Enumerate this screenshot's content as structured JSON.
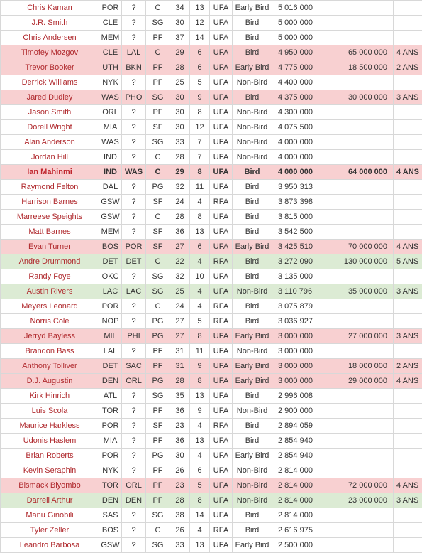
{
  "rows": [
    {
      "name": "Chris Kaman",
      "team": "POR",
      "new_team": "?",
      "pos": "C",
      "age": "34",
      "exp": "13",
      "status": "UFA",
      "rights": "Early Bird",
      "salary": "5 016 000",
      "new_salary": "",
      "years": "",
      "hl": ""
    },
    {
      "name": "J.R. Smith",
      "team": "CLE",
      "new_team": "?",
      "pos": "SG",
      "age": "30",
      "exp": "12",
      "status": "UFA",
      "rights": "Bird",
      "salary": "5 000 000",
      "new_salary": "",
      "years": "",
      "hl": ""
    },
    {
      "name": "Chris Andersen",
      "team": "MEM",
      "new_team": "?",
      "pos": "PF",
      "age": "37",
      "exp": "14",
      "status": "UFA",
      "rights": "Bird",
      "salary": "5 000 000",
      "new_salary": "",
      "years": "",
      "hl": ""
    },
    {
      "name": "Timofey Mozgov",
      "team": "CLE",
      "new_team": "LAL",
      "pos": "C",
      "age": "29",
      "exp": "6",
      "status": "UFA",
      "rights": "Bird",
      "salary": "4 950 000",
      "new_salary": "65 000 000",
      "years": "4 ANS",
      "hl": "red"
    },
    {
      "name": "Trevor Booker",
      "team": "UTH",
      "new_team": "BKN",
      "pos": "PF",
      "age": "28",
      "exp": "6",
      "status": "UFA",
      "rights": "Early Bird",
      "salary": "4 775 000",
      "new_salary": "18 500 000",
      "years": "2 ANS",
      "hl": "red"
    },
    {
      "name": "Derrick Williams",
      "team": "NYK",
      "new_team": "?",
      "pos": "PF",
      "age": "25",
      "exp": "5",
      "status": "UFA",
      "rights": "Non-Bird",
      "salary": "4 400 000",
      "new_salary": "",
      "years": "",
      "hl": ""
    },
    {
      "name": "Jared Dudley",
      "team": "WAS",
      "new_team": "PHO",
      "pos": "SG",
      "age": "30",
      "exp": "9",
      "status": "UFA",
      "rights": "Bird",
      "salary": "4 375 000",
      "new_salary": "30 000 000",
      "years": "3 ANS",
      "hl": "red"
    },
    {
      "name": "Jason Smith",
      "team": "ORL",
      "new_team": "?",
      "pos": "PF",
      "age": "30",
      "exp": "8",
      "status": "UFA",
      "rights": "Non-Bird",
      "salary": "4 300 000",
      "new_salary": "",
      "years": "",
      "hl": ""
    },
    {
      "name": "Dorell Wright",
      "team": "MIA",
      "new_team": "?",
      "pos": "SF",
      "age": "30",
      "exp": "12",
      "status": "UFA",
      "rights": "Non-Bird",
      "salary": "4 075 500",
      "new_salary": "",
      "years": "",
      "hl": ""
    },
    {
      "name": "Alan Anderson",
      "team": "WAS",
      "new_team": "?",
      "pos": "SG",
      "age": "33",
      "exp": "7",
      "status": "UFA",
      "rights": "Non-Bird",
      "salary": "4 000 000",
      "new_salary": "",
      "years": "",
      "hl": ""
    },
    {
      "name": "Jordan Hill",
      "team": "IND",
      "new_team": "?",
      "pos": "C",
      "age": "28",
      "exp": "7",
      "status": "UFA",
      "rights": "Non-Bird",
      "salary": "4 000 000",
      "new_salary": "",
      "years": "",
      "hl": ""
    },
    {
      "name": "Ian Mahinmi",
      "team": "IND",
      "new_team": "WAS",
      "pos": "C",
      "age": "29",
      "exp": "8",
      "status": "UFA",
      "rights": "Bird",
      "salary": "4 000 000",
      "new_salary": "64 000 000",
      "years": "4 ANS",
      "hl": "red",
      "bold": true
    },
    {
      "name": "Raymond Felton",
      "team": "DAL",
      "new_team": "?",
      "pos": "PG",
      "age": "32",
      "exp": "11",
      "status": "UFA",
      "rights": "Bird",
      "salary": "3 950 313",
      "new_salary": "",
      "years": "",
      "hl": ""
    },
    {
      "name": "Harrison Barnes",
      "team": "GSW",
      "new_team": "?",
      "pos": "SF",
      "age": "24",
      "exp": "4",
      "status": "RFA",
      "rights": "Bird",
      "salary": "3 873 398",
      "new_salary": "",
      "years": "",
      "hl": ""
    },
    {
      "name": "Marreese Speights",
      "team": "GSW",
      "new_team": "?",
      "pos": "C",
      "age": "28",
      "exp": "8",
      "status": "UFA",
      "rights": "Bird",
      "salary": "3 815 000",
      "new_salary": "",
      "years": "",
      "hl": ""
    },
    {
      "name": "Matt Barnes",
      "team": "MEM",
      "new_team": "?",
      "pos": "SF",
      "age": "36",
      "exp": "13",
      "status": "UFA",
      "rights": "Bird",
      "salary": "3 542 500",
      "new_salary": "",
      "years": "",
      "hl": ""
    },
    {
      "name": "Evan Turner",
      "team": "BOS",
      "new_team": "POR",
      "pos": "SF",
      "age": "27",
      "exp": "6",
      "status": "UFA",
      "rights": "Early Bird",
      "salary": "3 425 510",
      "new_salary": "70 000 000",
      "years": "4 ANS",
      "hl": "red"
    },
    {
      "name": "Andre Drummond",
      "team": "DET",
      "new_team": "DET",
      "pos": "C",
      "age": "22",
      "exp": "4",
      "status": "RFA",
      "rights": "Bird",
      "salary": "3 272 090",
      "new_salary": "130 000 000",
      "years": "5 ANS",
      "hl": "green"
    },
    {
      "name": "Randy Foye",
      "team": "OKC",
      "new_team": "?",
      "pos": "SG",
      "age": "32",
      "exp": "10",
      "status": "UFA",
      "rights": "Bird",
      "salary": "3 135 000",
      "new_salary": "",
      "years": "",
      "hl": ""
    },
    {
      "name": "Austin Rivers",
      "team": "LAC",
      "new_team": "LAC",
      "pos": "SG",
      "age": "25",
      "exp": "4",
      "status": "UFA",
      "rights": "Non-Bird",
      "salary": "3 110 796",
      "new_salary": "35 000 000",
      "years": "3 ANS",
      "hl": "green"
    },
    {
      "name": "Meyers Leonard",
      "team": "POR",
      "new_team": "?",
      "pos": "C",
      "age": "24",
      "exp": "4",
      "status": "RFA",
      "rights": "Bird",
      "salary": "3 075 879",
      "new_salary": "",
      "years": "",
      "hl": ""
    },
    {
      "name": "Norris Cole",
      "team": "NOP",
      "new_team": "?",
      "pos": "PG",
      "age": "27",
      "exp": "5",
      "status": "RFA",
      "rights": "Bird",
      "salary": "3 036 927",
      "new_salary": "",
      "years": "",
      "hl": ""
    },
    {
      "name": "Jerryd Bayless",
      "team": "MIL",
      "new_team": "PHI",
      "pos": "PG",
      "age": "27",
      "exp": "8",
      "status": "UFA",
      "rights": "Early Bird",
      "salary": "3 000 000",
      "new_salary": "27 000 000",
      "years": "3 ANS",
      "hl": "red"
    },
    {
      "name": "Brandon Bass",
      "team": "LAL",
      "new_team": "?",
      "pos": "PF",
      "age": "31",
      "exp": "11",
      "status": "UFA",
      "rights": "Non-Bird",
      "salary": "3 000 000",
      "new_salary": "",
      "years": "",
      "hl": ""
    },
    {
      "name": "Anthony Tolliver",
      "team": "DET",
      "new_team": "SAC",
      "pos": "PF",
      "age": "31",
      "exp": "9",
      "status": "UFA",
      "rights": "Early Bird",
      "salary": "3 000 000",
      "new_salary": "18 000 000",
      "years": "2 ANS",
      "hl": "red"
    },
    {
      "name": "D.J. Augustin",
      "team": "DEN",
      "new_team": "ORL",
      "pos": "PG",
      "age": "28",
      "exp": "8",
      "status": "UFA",
      "rights": "Early Bird",
      "salary": "3 000 000",
      "new_salary": "29 000 000",
      "years": "4 ANS",
      "hl": "red"
    },
    {
      "name": "Kirk Hinrich",
      "team": "ATL",
      "new_team": "?",
      "pos": "SG",
      "age": "35",
      "exp": "13",
      "status": "UFA",
      "rights": "Bird",
      "salary": "2 996 008",
      "new_salary": "",
      "years": "",
      "hl": ""
    },
    {
      "name": "Luis Scola",
      "team": "TOR",
      "new_team": "?",
      "pos": "PF",
      "age": "36",
      "exp": "9",
      "status": "UFA",
      "rights": "Non-Bird",
      "salary": "2 900 000",
      "new_salary": "",
      "years": "",
      "hl": ""
    },
    {
      "name": "Maurice Harkless",
      "team": "POR",
      "new_team": "?",
      "pos": "SF",
      "age": "23",
      "exp": "4",
      "status": "RFA",
      "rights": "Bird",
      "salary": "2 894 059",
      "new_salary": "",
      "years": "",
      "hl": ""
    },
    {
      "name": "Udonis Haslem",
      "team": "MIA",
      "new_team": "?",
      "pos": "PF",
      "age": "36",
      "exp": "13",
      "status": "UFA",
      "rights": "Bird",
      "salary": "2 854 940",
      "new_salary": "",
      "years": "",
      "hl": ""
    },
    {
      "name": "Brian Roberts",
      "team": "POR",
      "new_team": "?",
      "pos": "PG",
      "age": "30",
      "exp": "4",
      "status": "UFA",
      "rights": "Early Bird",
      "salary": "2 854 940",
      "new_salary": "",
      "years": "",
      "hl": ""
    },
    {
      "name": "Kevin Seraphin",
      "team": "NYK",
      "new_team": "?",
      "pos": "PF",
      "age": "26",
      "exp": "6",
      "status": "UFA",
      "rights": "Non-Bird",
      "salary": "2 814 000",
      "new_salary": "",
      "years": "",
      "hl": ""
    },
    {
      "name": "Bismack Biyombo",
      "team": "TOR",
      "new_team": "ORL",
      "pos": "PF",
      "age": "23",
      "exp": "5",
      "status": "UFA",
      "rights": "Non-Bird",
      "salary": "2 814 000",
      "new_salary": "72 000 000",
      "years": "4 ANS",
      "hl": "red"
    },
    {
      "name": "Darrell Arthur",
      "team": "DEN",
      "new_team": "DEN",
      "pos": "PF",
      "age": "28",
      "exp": "8",
      "status": "UFA",
      "rights": "Non-Bird",
      "salary": "2 814 000",
      "new_salary": "23 000 000",
      "years": "3 ANS",
      "hl": "green"
    },
    {
      "name": "Manu Ginobili",
      "team": "SAS",
      "new_team": "?",
      "pos": "SG",
      "age": "38",
      "exp": "14",
      "status": "UFA",
      "rights": "Bird",
      "salary": "2 814 000",
      "new_salary": "",
      "years": "",
      "hl": ""
    },
    {
      "name": "Tyler Zeller",
      "team": "BOS",
      "new_team": "?",
      "pos": "C",
      "age": "26",
      "exp": "4",
      "status": "RFA",
      "rights": "Bird",
      "salary": "2 616 975",
      "new_salary": "",
      "years": "",
      "hl": ""
    },
    {
      "name": "Leandro Barbosa",
      "team": "GSW",
      "new_team": "?",
      "pos": "SG",
      "age": "33",
      "exp": "13",
      "status": "UFA",
      "rights": "Early Bird",
      "salary": "2 500 000",
      "new_salary": "",
      "years": "",
      "hl": ""
    }
  ]
}
